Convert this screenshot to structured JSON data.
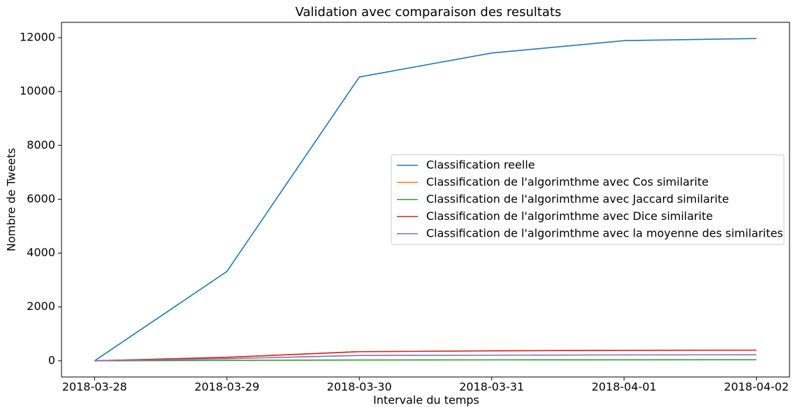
{
  "chart_data": {
    "type": "line",
    "title": "Validation avec comparaison des resultats",
    "x_label": "Intervale du temps",
    "y_label": "Nombre de Tweets",
    "categories": [
      "2018-03-28",
      "2018-03-29",
      "2018-03-30",
      "2018-03-31",
      "2018-04-01",
      "2018-04-02"
    ],
    "series": [
      {
        "name": "Classification reelle",
        "color": "#1f77b4",
        "values": [
          0,
          3320,
          10540,
          11430,
          11890,
          11970
        ]
      },
      {
        "name": "Classification de l'algorimthme avec Cos similarite",
        "color": "#ff7f0e",
        "values": [
          0,
          130,
          340,
          370,
          390,
          395
        ]
      },
      {
        "name": "Classification de l'algorimthme avec Jaccard similarite",
        "color": "#2ca02c",
        "values": [
          0,
          15,
          30,
          35,
          38,
          40
        ]
      },
      {
        "name": "Classification de l'algorimthme avec Dice similarite",
        "color": "#d62728",
        "values": [
          0,
          130,
          340,
          370,
          390,
          395
        ]
      },
      {
        "name": "Classification de l'algorimthme avec la moyenne des similarites",
        "color": "#9467bd",
        "values": [
          0,
          80,
          200,
          210,
          220,
          225
        ]
      }
    ],
    "ylim": [
      -600,
      12570
    ],
    "yticks": [
      0,
      2000,
      4000,
      6000,
      8000,
      10000,
      12000
    ],
    "legend": "center right"
  }
}
